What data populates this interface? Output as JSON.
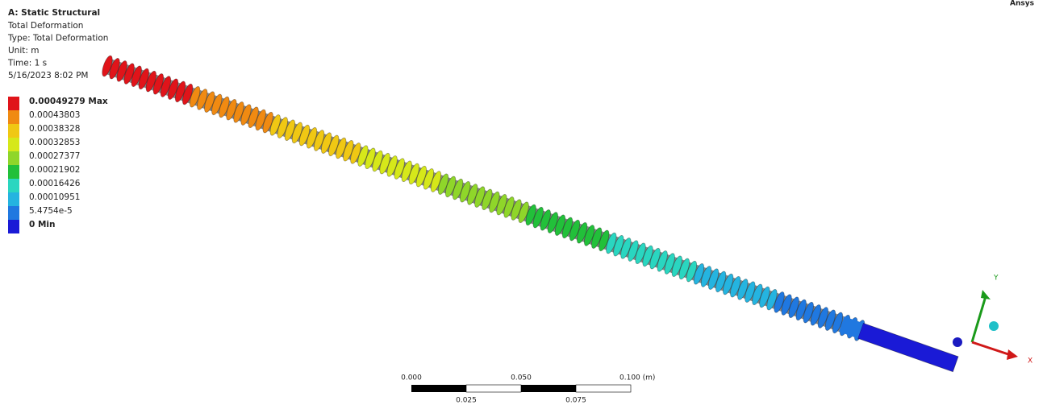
{
  "header": {
    "title": "A: Static Structural",
    "lines": [
      "Total Deformation",
      "Type: Total Deformation",
      "Unit: m",
      "Time: 1 s",
      "5/16/2023 8:02 PM"
    ]
  },
  "legend": [
    {
      "label": "0.00049279 Max",
      "color": "#e0141a"
    },
    {
      "label": "0.00043803",
      "color": "#f08a12"
    },
    {
      "label": "0.00038328",
      "color": "#f0c814"
    },
    {
      "label": "0.00032853",
      "color": "#d6e81a"
    },
    {
      "label": "0.00027377",
      "color": "#8fd62a"
    },
    {
      "label": "0.00021902",
      "color": "#22c03a"
    },
    {
      "label": "0.00016426",
      "color": "#2ad6c0"
    },
    {
      "label": "0.00010951",
      "color": "#25b4e0"
    },
    {
      "label": "5.4754e-5",
      "color": "#2078e0"
    },
    {
      "label": "0 Min",
      "color": "#1a1ad6"
    }
  ],
  "scale_bar": {
    "top": [
      "0.000",
      "0.050",
      "0.100 (m)"
    ],
    "bottom": [
      "0.025",
      "0.075"
    ]
  },
  "triad": {
    "y": "Y",
    "x": "X"
  },
  "logo": "Ansys"
}
